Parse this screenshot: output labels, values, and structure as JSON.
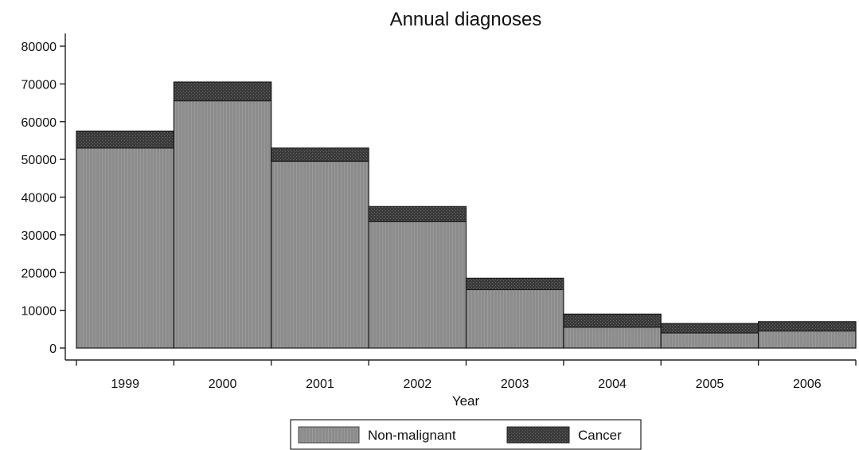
{
  "chart_data": {
    "type": "bar",
    "stacked": true,
    "title": "Annual diagnoses",
    "xlabel": "Year",
    "ylabel": "",
    "categories": [
      "1999",
      "2000",
      "2001",
      "2002",
      "2003",
      "2004",
      "2005",
      "2006"
    ],
    "series": [
      {
        "name": "Non-malignant",
        "values": [
          53000,
          65500,
          49500,
          33500,
          15500,
          5500,
          4000,
          4500
        ],
        "color": "#8c8c8c"
      },
      {
        "name": "Cancer",
        "values": [
          4500,
          5000,
          3500,
          4000,
          3000,
          3500,
          2500,
          2500
        ],
        "color": "#3a3a3a"
      }
    ],
    "ylim": [
      0,
      80000
    ],
    "yticks": [
      "0",
      "10000",
      "20000",
      "30000",
      "40000",
      "50000",
      "60000",
      "70000",
      "80000"
    ],
    "grid": false,
    "legend_position": "bottom"
  }
}
